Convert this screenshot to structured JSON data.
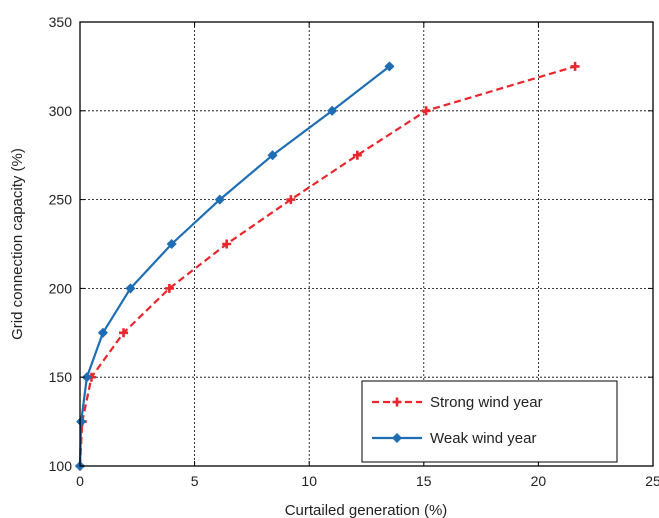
{
  "chart_data": {
    "type": "line",
    "xlabel": "Curtailed generation (%)",
    "ylabel": "Grid connection capacity (%)",
    "xlim": [
      0,
      25
    ],
    "ylim": [
      100,
      350
    ],
    "xticks": [
      0,
      5,
      10,
      15,
      20,
      25
    ],
    "yticks": [
      100,
      150,
      200,
      250,
      300,
      350
    ],
    "grid": true,
    "legend_position": "bottom-right",
    "series": [
      {
        "name": "Strong wind year",
        "color": "#e8262b",
        "line_style": "dashed",
        "marker": "plus",
        "points": [
          {
            "x": 0.0,
            "y": 100
          },
          {
            "x": 0.1,
            "y": 125
          },
          {
            "x": 0.5,
            "y": 150
          },
          {
            "x": 1.9,
            "y": 175
          },
          {
            "x": 3.9,
            "y": 200
          },
          {
            "x": 6.4,
            "y": 225
          },
          {
            "x": 9.2,
            "y": 250
          },
          {
            "x": 12.1,
            "y": 275
          },
          {
            "x": 15.1,
            "y": 300
          },
          {
            "x": 21.6,
            "y": 325
          }
        ]
      },
      {
        "name": "Weak wind year",
        "color": "#1f6eb3",
        "line_style": "solid",
        "marker": "diamond",
        "points": [
          {
            "x": 0.0,
            "y": 100
          },
          {
            "x": 0.05,
            "y": 125
          },
          {
            "x": 0.3,
            "y": 150
          },
          {
            "x": 1.0,
            "y": 175
          },
          {
            "x": 2.2,
            "y": 200
          },
          {
            "x": 4.0,
            "y": 225
          },
          {
            "x": 6.1,
            "y": 250
          },
          {
            "x": 8.4,
            "y": 275
          },
          {
            "x": 11.0,
            "y": 300
          },
          {
            "x": 13.5,
            "y": 325
          }
        ]
      }
    ]
  }
}
